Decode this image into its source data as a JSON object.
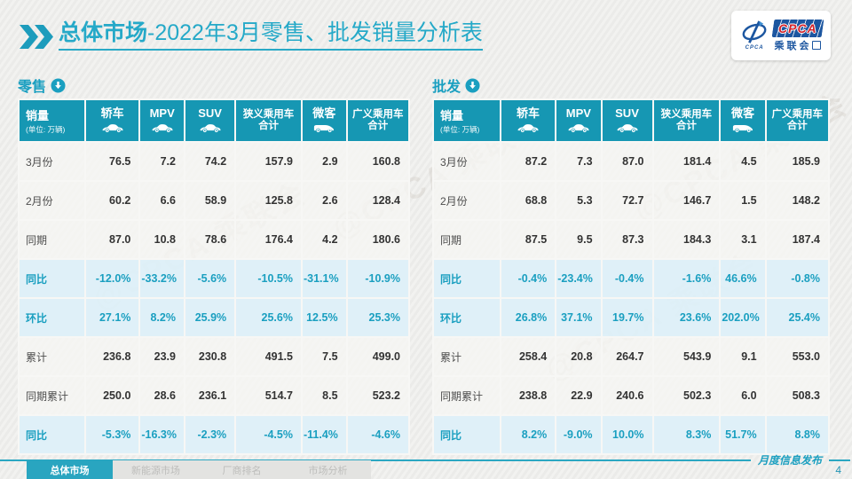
{
  "title": {
    "emphasis": "总体市场",
    "rest": "-2022年3月零售、批发销量分析表"
  },
  "logo": {
    "cpca": "CPCA",
    "cn": "乘联会",
    "emblem_caption": "CPCA"
  },
  "sections": [
    {
      "label": "零售"
    },
    {
      "label": "批发"
    }
  ],
  "columns": {
    "first": {
      "title": "销量",
      "unit": "(单位: 万辆)"
    },
    "cars": [
      {
        "label": "轿车",
        "icon": "sedan-icon"
      },
      {
        "label": "MPV",
        "icon": "mpv-icon"
      },
      {
        "label": "SUV",
        "icon": "suv-icon"
      },
      {
        "label": "狭义乘用车",
        "label2": "合计",
        "icon": null
      },
      {
        "label": "微客",
        "icon": "van-icon"
      },
      {
        "label": "广义乘用车",
        "label2": "合计",
        "icon": null
      }
    ]
  },
  "chart_data": [
    {
      "type": "table",
      "title": "零售",
      "unit": "万辆",
      "columns": [
        "轿车",
        "MPV",
        "SUV",
        "狭义乘用车合计",
        "微客",
        "广义乘用车合计"
      ],
      "rows": [
        {
          "label": "3月份",
          "kind": "value",
          "values": [
            "76.5",
            "7.2",
            "74.2",
            "157.9",
            "2.9",
            "160.8"
          ]
        },
        {
          "label": "2月份",
          "kind": "value",
          "values": [
            "60.2",
            "6.6",
            "58.9",
            "125.8",
            "2.6",
            "128.4"
          ]
        },
        {
          "label": "同期",
          "kind": "value",
          "values": [
            "87.0",
            "10.8",
            "78.6",
            "176.4",
            "4.2",
            "180.6"
          ]
        },
        {
          "label": "同比",
          "kind": "pct",
          "values": [
            "-12.0%",
            "-33.2%",
            "-5.6%",
            "-10.5%",
            "-31.1%",
            "-10.9%"
          ]
        },
        {
          "label": "环比",
          "kind": "pct",
          "values": [
            "27.1%",
            "8.2%",
            "25.9%",
            "25.6%",
            "12.5%",
            "25.3%"
          ]
        },
        {
          "label": "累计",
          "kind": "value",
          "values": [
            "236.8",
            "23.9",
            "230.8",
            "491.5",
            "7.5",
            "499.0"
          ]
        },
        {
          "label": "同期累计",
          "kind": "value",
          "values": [
            "250.0",
            "28.6",
            "236.1",
            "514.7",
            "8.5",
            "523.2"
          ]
        },
        {
          "label": "同比",
          "kind": "pct",
          "values": [
            "-5.3%",
            "-16.3%",
            "-2.3%",
            "-4.5%",
            "-11.4%",
            "-4.6%"
          ]
        }
      ]
    },
    {
      "type": "table",
      "title": "批发",
      "unit": "万辆",
      "columns": [
        "轿车",
        "MPV",
        "SUV",
        "狭义乘用车合计",
        "微客",
        "广义乘用车合计"
      ],
      "rows": [
        {
          "label": "3月份",
          "kind": "value",
          "values": [
            "87.2",
            "7.3",
            "87.0",
            "181.4",
            "4.5",
            "185.9"
          ]
        },
        {
          "label": "2月份",
          "kind": "value",
          "values": [
            "68.8",
            "5.3",
            "72.7",
            "146.7",
            "1.5",
            "148.2"
          ]
        },
        {
          "label": "同期",
          "kind": "value",
          "values": [
            "87.5",
            "9.5",
            "87.3",
            "184.3",
            "3.1",
            "187.4"
          ]
        },
        {
          "label": "同比",
          "kind": "pct",
          "values": [
            "-0.4%",
            "-23.4%",
            "-0.4%",
            "-1.6%",
            "46.6%",
            "-0.8%"
          ]
        },
        {
          "label": "环比",
          "kind": "pct",
          "values": [
            "26.8%",
            "37.1%",
            "19.7%",
            "23.6%",
            "202.0%",
            "25.4%"
          ]
        },
        {
          "label": "累计",
          "kind": "value",
          "values": [
            "258.4",
            "20.8",
            "264.7",
            "543.9",
            "9.1",
            "553.0"
          ]
        },
        {
          "label": "同期累计",
          "kind": "value",
          "values": [
            "238.8",
            "22.9",
            "240.6",
            "502.3",
            "6.0",
            "508.3"
          ]
        },
        {
          "label": "同比",
          "kind": "pct",
          "values": [
            "8.2%",
            "-9.0%",
            "10.0%",
            "8.3%",
            "51.7%",
            "8.8%"
          ]
        }
      ]
    }
  ],
  "watermark": {
    "text": "@CPCA 乘联会"
  },
  "footer": {
    "tabs": [
      {
        "label": "总体市场",
        "active": true
      },
      {
        "label": "新能源市场",
        "active": false
      },
      {
        "label": "厂商排名",
        "active": false
      },
      {
        "label": "市场分析",
        "active": false
      }
    ],
    "note": "月度信息发布",
    "page": "4"
  }
}
